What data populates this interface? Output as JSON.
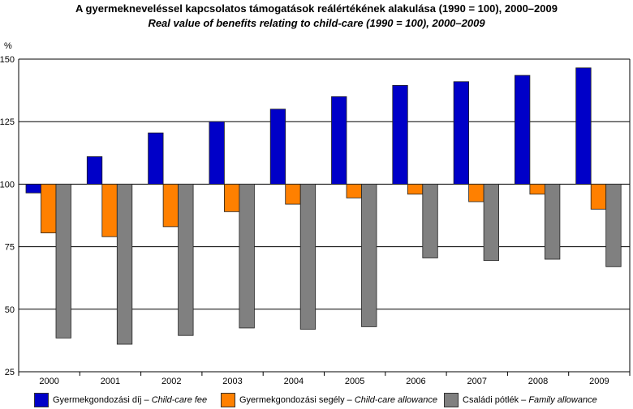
{
  "chart_data": {
    "type": "bar",
    "title": "A gyermekneveléssel kapcsolatos támogatások reálértékének alakulása (1990 = 100), 2000–2009",
    "subtitle": "Real value of benefits relating to child-care (1990 = 100), 2000–2009",
    "ylabel": "%",
    "xlabel": "",
    "baseline": 100,
    "ylim": [
      25,
      150
    ],
    "yticks": [
      "25",
      "50",
      "75",
      "100",
      "125",
      "150"
    ],
    "grid": true,
    "legend_position": "bottom",
    "categories": [
      "2000",
      "2001",
      "2002",
      "2003",
      "2004",
      "2005",
      "2006",
      "2007",
      "2008",
      "2009"
    ],
    "series": [
      {
        "name_hu": "Gyermekgondozási díj",
        "name_en": "Child-care fee",
        "separator": " – ",
        "color": "#0000c8",
        "values": [
          96.5,
          111,
          120.5,
          125,
          130,
          135,
          139.5,
          141,
          143.5,
          146.5
        ]
      },
      {
        "name_hu": "Gyermekgondozási segély",
        "name_en": "Child-care allowance",
        "separator": " – ",
        "color": "#ff8000",
        "values": [
          80.5,
          79,
          83,
          89,
          92,
          94.5,
          96,
          93,
          96,
          90
        ]
      },
      {
        "name_hu": "Családi pótlék",
        "name_en": "Family allowance",
        "separator": " – ",
        "color": "#808080",
        "values": [
          38.5,
          36,
          39.5,
          42.5,
          42,
          43,
          70.5,
          69.5,
          70,
          67
        ]
      }
    ]
  }
}
